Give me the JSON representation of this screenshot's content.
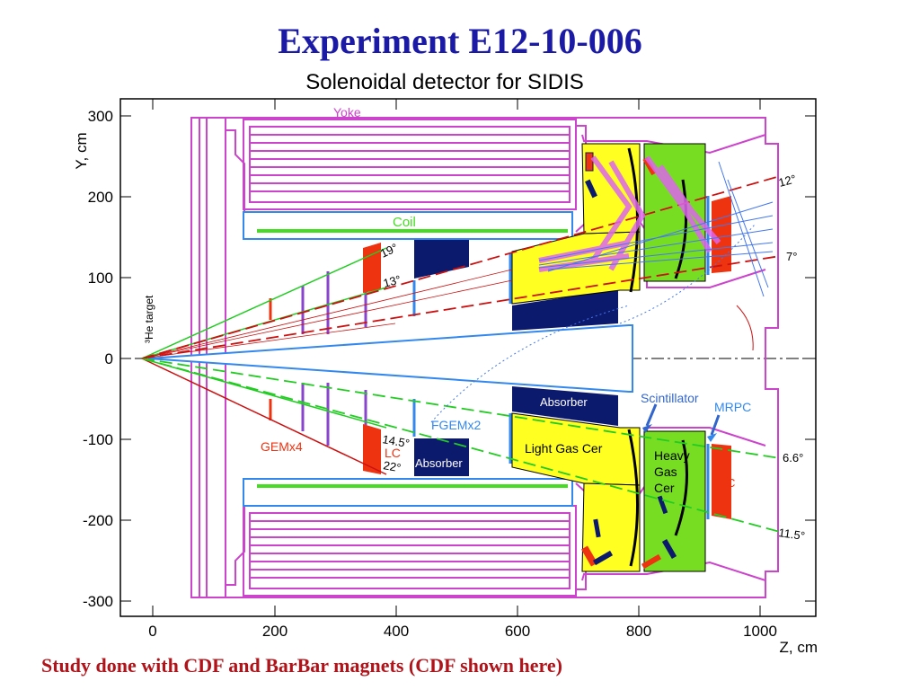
{
  "slide": {
    "title": "Experiment E12-10-006",
    "plot_title": "Solenoidal detector for SIDIS",
    "footer": "Study done with CDF and BarBar magnets (CDF shown here)"
  },
  "axes": {
    "x_label": "Z, cm",
    "y_label": "Y, cm",
    "x_ticks": [
      "0",
      "200",
      "400",
      "600",
      "800",
      "1000"
    ],
    "y_ticks": [
      "300",
      "200",
      "100",
      "0",
      "-100",
      "-200",
      "-300"
    ]
  },
  "labels": {
    "yoke": "Yoke",
    "coil": "Coil",
    "target": "³He target",
    "gem": "GEMx4",
    "lc": "LC",
    "fgem": "FGEMx2",
    "absorber_low": "Absorber",
    "absorber_mid": "Absorber",
    "light_gas_cer": "Light Gas Cer",
    "heavy_gas_1": "Heavy",
    "heavy_gas_2": "Gas",
    "heavy_gas_3": "Cer",
    "scintillator": "Scintillator",
    "mrpc": "MRPC",
    "calorimeter": "C"
  },
  "angles": {
    "a19": "19°",
    "a13": "13°",
    "a12": "12°",
    "a7": "7°",
    "a14_5": "14.5°",
    "a22": "22°",
    "a6_6": "6.6°",
    "a11_5": "11.5°"
  },
  "colors": {
    "title": "#1a1aa6",
    "footer": "#b0141a",
    "yoke": "#cc44cc",
    "coil": "#44dd22",
    "absorber": "#0c1a6e",
    "light_gas": "#ffff22",
    "heavy_gas": "#77dd22",
    "calorimeter": "#ee3311",
    "scintillator": "#3388ee",
    "red_line": "#cc1111",
    "green_line": "#22cc22"
  }
}
